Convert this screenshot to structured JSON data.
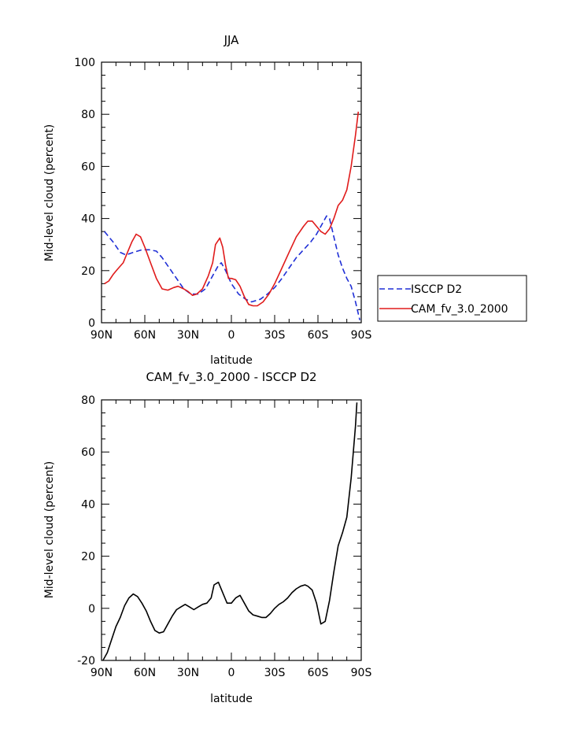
{
  "chart_data": [
    {
      "type": "line",
      "title": "JJA",
      "xlabel": "latitude",
      "ylabel": "Mid-level cloud (percent)",
      "xlim": [
        0,
        180
      ],
      "ylim": [
        0,
        100
      ],
      "x_ticks": [
        {
          "value": 0,
          "label": "90N"
        },
        {
          "value": 30,
          "label": "60N"
        },
        {
          "value": 60,
          "label": "30N"
        },
        {
          "value": 90,
          "label": "0"
        },
        {
          "value": 120,
          "label": "30S"
        },
        {
          "value": 150,
          "label": "60S"
        },
        {
          "value": 180,
          "label": "90S"
        }
      ],
      "y_ticks": [
        0,
        20,
        40,
        60,
        80,
        100
      ],
      "grid": false,
      "legend_placement": "right",
      "series": [
        {
          "name": "ISCCP D2",
          "color": "#1f2fd6",
          "dash": "dashed",
          "points": [
            [
              2,
              35
            ],
            [
              8,
              31
            ],
            [
              13,
              27
            ],
            [
              17,
              26
            ],
            [
              22,
              27
            ],
            [
              28,
              28
            ],
            [
              33,
              28
            ],
            [
              38,
              27.5
            ],
            [
              42,
              25
            ],
            [
              47,
              21
            ],
            [
              52,
              17
            ],
            [
              57,
              13
            ],
            [
              62,
              11
            ],
            [
              67,
              11
            ],
            [
              72,
              13
            ],
            [
              77,
              18
            ],
            [
              81,
              22
            ],
            [
              83,
              23
            ],
            [
              86,
              20
            ],
            [
              90,
              15
            ],
            [
              95,
              11
            ],
            [
              100,
              9
            ],
            [
              104,
              8
            ],
            [
              110,
              9
            ],
            [
              115,
              11
            ],
            [
              120,
              13.5
            ],
            [
              125,
              17
            ],
            [
              130,
              21
            ],
            [
              135,
              25
            ],
            [
              140,
              28
            ],
            [
              145,
              31
            ],
            [
              149,
              34
            ],
            [
              153,
              38
            ],
            [
              156,
              41
            ],
            [
              158,
              40
            ],
            [
              161,
              33
            ],
            [
              164,
              26
            ],
            [
              167,
              21
            ],
            [
              170,
              17
            ],
            [
              173,
              14
            ],
            [
              176,
              8
            ],
            [
              179,
              1
            ]
          ]
        },
        {
          "name": "CAM_fv_3.0_2000",
          "color": "#e01b1b",
          "dash": "solid",
          "points": [
            [
              2,
              15
            ],
            [
              5,
              16
            ],
            [
              8,
              18.5
            ],
            [
              11,
              20.5
            ],
            [
              15,
              23
            ],
            [
              18,
              27
            ],
            [
              21,
              31
            ],
            [
              24,
              34
            ],
            [
              27,
              33
            ],
            [
              30,
              29
            ],
            [
              34,
              23
            ],
            [
              38,
              17
            ],
            [
              42,
              13
            ],
            [
              46,
              12.5
            ],
            [
              50,
              13.5
            ],
            [
              53,
              14
            ],
            [
              57,
              13
            ],
            [
              60,
              12
            ],
            [
              63,
              10.5
            ],
            [
              66,
              11
            ],
            [
              70,
              13
            ],
            [
              74,
              18
            ],
            [
              77,
              23
            ],
            [
              79,
              30
            ],
            [
              82,
              32.5
            ],
            [
              84,
              29
            ],
            [
              86,
              22
            ],
            [
              88,
              17
            ],
            [
              90,
              17
            ],
            [
              93,
              16.5
            ],
            [
              96,
              14
            ],
            [
              99,
              10
            ],
            [
              102,
              7
            ],
            [
              105,
              6.5
            ],
            [
              108,
              6.5
            ],
            [
              112,
              8
            ],
            [
              116,
              11
            ],
            [
              120,
              15
            ],
            [
              125,
              21
            ],
            [
              130,
              27
            ],
            [
              135,
              33
            ],
            [
              140,
              37
            ],
            [
              143,
              39
            ],
            [
              146,
              39
            ],
            [
              149,
              37
            ],
            [
              152,
              35
            ],
            [
              155,
              34
            ],
            [
              158,
              36
            ],
            [
              161,
              40
            ],
            [
              164,
              45
            ],
            [
              167,
              47
            ],
            [
              170,
              51
            ],
            [
              173,
              60
            ],
            [
              176,
              72
            ],
            [
              178,
              81
            ]
          ]
        }
      ]
    },
    {
      "type": "line",
      "title": "CAM_fv_3.0_2000 - ISCCP D2",
      "xlabel": "latitude",
      "ylabel": "Mid-level cloud (percent)",
      "xlim": [
        0,
        180
      ],
      "ylim": [
        -20,
        80
      ],
      "x_ticks": [
        {
          "value": 0,
          "label": "90N"
        },
        {
          "value": 30,
          "label": "60N"
        },
        {
          "value": 60,
          "label": "30N"
        },
        {
          "value": 90,
          "label": "0"
        },
        {
          "value": 120,
          "label": "30S"
        },
        {
          "value": 150,
          "label": "60S"
        },
        {
          "value": 180,
          "label": "90S"
        }
      ],
      "y_ticks": [
        -20,
        0,
        20,
        40,
        60,
        80
      ],
      "grid": false,
      "series": [
        {
          "color": "#000000",
          "dash": "solid",
          "points": [
            [
              1,
              -20
            ],
            [
              4,
              -17
            ],
            [
              7,
              -12
            ],
            [
              10,
              -7
            ],
            [
              13,
              -3.5
            ],
            [
              16,
              1
            ],
            [
              19,
              4
            ],
            [
              22,
              5.5
            ],
            [
              25,
              4.5
            ],
            [
              28,
              2
            ],
            [
              31,
              -1
            ],
            [
              34,
              -5
            ],
            [
              37,
              -8.5
            ],
            [
              40,
              -9.5
            ],
            [
              43,
              -9
            ],
            [
              46,
              -6
            ],
            [
              49,
              -3
            ],
            [
              52,
              -0.5
            ],
            [
              55,
              0.5
            ],
            [
              58,
              1.5
            ],
            [
              61,
              0.5
            ],
            [
              64,
              -0.5
            ],
            [
              67,
              0.5
            ],
            [
              70,
              1.5
            ],
            [
              73,
              2
            ],
            [
              76,
              4
            ],
            [
              78,
              9
            ],
            [
              81,
              10
            ],
            [
              84,
              6
            ],
            [
              87,
              2
            ],
            [
              90,
              2
            ],
            [
              93,
              4
            ],
            [
              96,
              5
            ],
            [
              99,
              2
            ],
            [
              102,
              -1
            ],
            [
              105,
              -2.5
            ],
            [
              108,
              -3
            ],
            [
              111,
              -3.5
            ],
            [
              114,
              -3.5
            ],
            [
              117,
              -2
            ],
            [
              120,
              0
            ],
            [
              123,
              1.5
            ],
            [
              126,
              2.5
            ],
            [
              129,
              4
            ],
            [
              132,
              6
            ],
            [
              135,
              7.5
            ],
            [
              138,
              8.5
            ],
            [
              141,
              9
            ],
            [
              143,
              8.5
            ],
            [
              146,
              7
            ],
            [
              149,
              2
            ],
            [
              152,
              -6
            ],
            [
              155,
              -5
            ],
            [
              158,
              3
            ],
            [
              161,
              14
            ],
            [
              164,
              24
            ],
            [
              167,
              29
            ],
            [
              170,
              35
            ],
            [
              173,
              50
            ],
            [
              176,
              70
            ],
            [
              177,
              79
            ]
          ]
        }
      ]
    }
  ]
}
